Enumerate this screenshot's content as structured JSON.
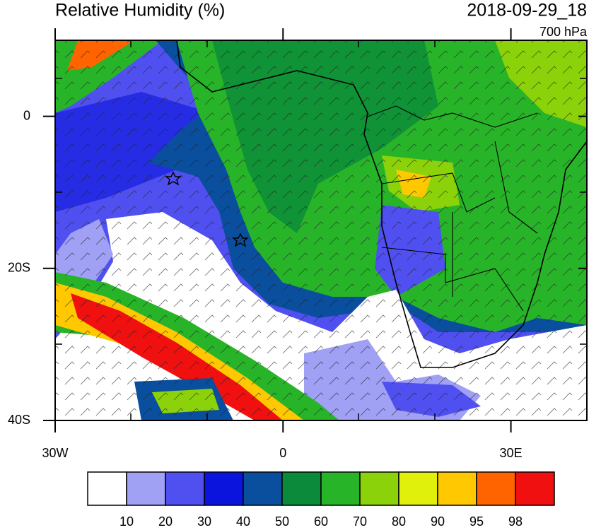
{
  "map": {
    "title": "Relative Humidity (%)",
    "date": "2018-09-29_18",
    "level": "700 hPa",
    "xlim": [
      -30,
      40
    ],
    "ylim": [
      -40,
      10
    ],
    "xticks": [
      {
        "value": -30,
        "label": "30W"
      },
      0,
      {
        "value": 30,
        "label": "30E"
      }
    ],
    "yticks": [
      {
        "value": -40,
        "label": "40S"
      },
      {
        "value": -20,
        "label": "20S"
      },
      0
    ],
    "colorbar": {
      "colors": [
        "#ffffff",
        "#a0a0f5",
        "#5050f0",
        "#0a14dc",
        "#0a4e9e",
        "#0a8a3a",
        "#28b428",
        "#8cd20a",
        "#e1f00a",
        "#ffc800",
        "#ff6400",
        "#f01010"
      ],
      "levels": [
        10,
        20,
        30,
        40,
        50,
        60,
        70,
        80,
        90,
        95,
        98
      ]
    }
  }
}
